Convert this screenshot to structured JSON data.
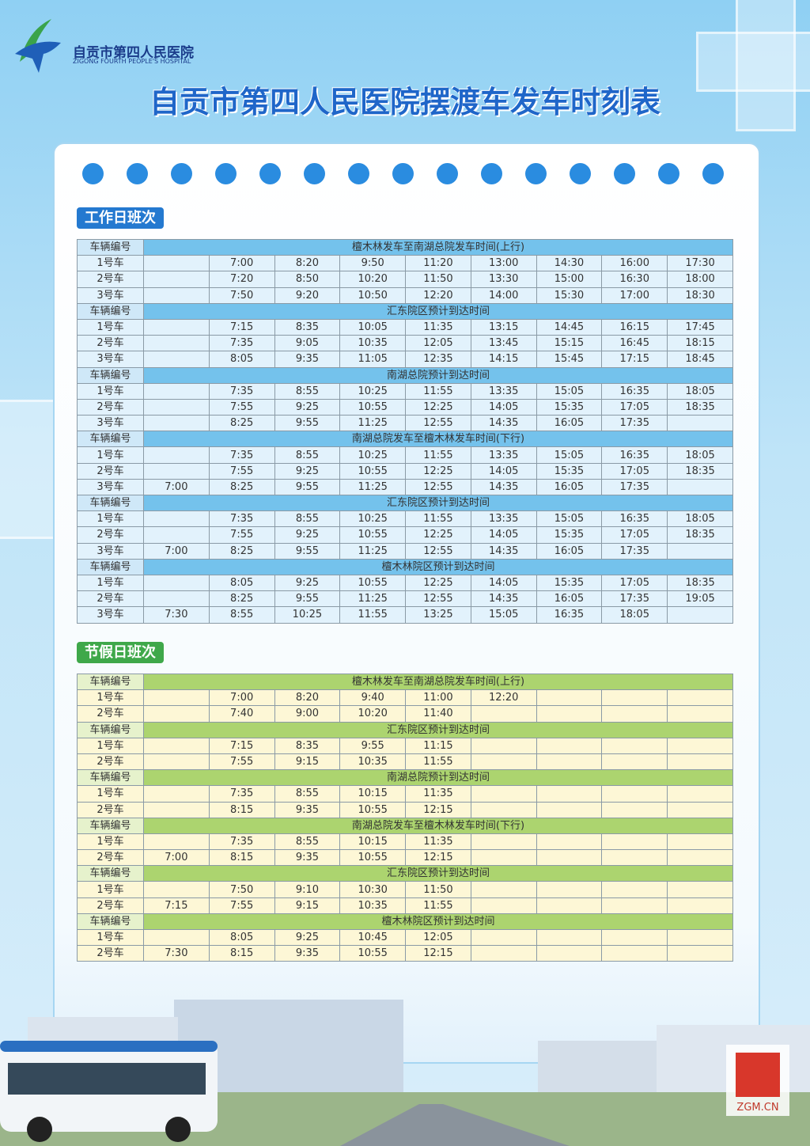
{
  "header": {
    "logo_cn": "自贡市第四人民医院",
    "logo_en": "ZIGONG FOURTH PEOPLE'S HOSPITAL",
    "title": "自贡市第四人民医院摆渡车发车时刻表"
  },
  "sections": [
    {
      "title": "工作日班次",
      "theme": "blue",
      "blocks": [
        {
          "id_label": "车辆编号",
          "caption": "檀木林发车至南湖总院发车时间(上行)",
          "rows": [
            {
              "car": "1号车",
              "times": [
                null,
                "7:00",
                "8:20",
                "9:50",
                "11:20",
                "13:00",
                "14:30",
                "16:00",
                "17:30"
              ]
            },
            {
              "car": "2号车",
              "times": [
                null,
                "7:20",
                "8:50",
                "10:20",
                "11:50",
                "13:30",
                "15:00",
                "16:30",
                "18:00"
              ]
            },
            {
              "car": "3号车",
              "times": [
                null,
                "7:50",
                "9:20",
                "10:50",
                "12:20",
                "14:00",
                "15:30",
                "17:00",
                "18:30"
              ]
            }
          ]
        },
        {
          "id_label": "车辆编号",
          "caption": "汇东院区预计到达时间",
          "rows": [
            {
              "car": "1号车",
              "times": [
                null,
                "7:15",
                "8:35",
                "10:05",
                "11:35",
                "13:15",
                "14:45",
                "16:15",
                "17:45"
              ]
            },
            {
              "car": "2号车",
              "times": [
                null,
                "7:35",
                "9:05",
                "10:35",
                "12:05",
                "13:45",
                "15:15",
                "16:45",
                "18:15"
              ]
            },
            {
              "car": "3号车",
              "times": [
                null,
                "8:05",
                "9:35",
                "11:05",
                "12:35",
                "14:15",
                "15:45",
                "17:15",
                "18:45"
              ]
            }
          ]
        },
        {
          "id_label": "车辆编号",
          "caption": "南湖总院预计到达时间",
          "rows": [
            {
              "car": "1号车",
              "times": [
                null,
                "7:35",
                "8:55",
                "10:25",
                "11:55",
                "13:35",
                "15:05",
                "16:35",
                "18:05"
              ]
            },
            {
              "car": "2号车",
              "times": [
                null,
                "7:55",
                "9:25",
                "10:55",
                "12:25",
                "14:05",
                "15:35",
                "17:05",
                "18:35"
              ]
            },
            {
              "car": "3号车",
              "times": [
                null,
                "8:25",
                "9:55",
                "11:25",
                "12:55",
                "14:35",
                "16:05",
                "17:35",
                null
              ]
            }
          ]
        },
        {
          "id_label": "车辆编号",
          "caption": "南湖总院发车至檀木林发车时间(下行)",
          "rows": [
            {
              "car": "1号车",
              "times": [
                null,
                "7:35",
                "8:55",
                "10:25",
                "11:55",
                "13:35",
                "15:05",
                "16:35",
                "18:05"
              ]
            },
            {
              "car": "2号车",
              "times": [
                null,
                "7:55",
                "9:25",
                "10:55",
                "12:25",
                "14:05",
                "15:35",
                "17:05",
                "18:35"
              ]
            },
            {
              "car": "3号车",
              "times": [
                "7:00",
                "8:25",
                "9:55",
                "11:25",
                "12:55",
                "14:35",
                "16:05",
                "17:35",
                null
              ]
            }
          ]
        },
        {
          "id_label": "车辆编号",
          "caption": "汇东院区预计到达时间",
          "rows": [
            {
              "car": "1号车",
              "times": [
                null,
                "7:35",
                "8:55",
                "10:25",
                "11:55",
                "13:35",
                "15:05",
                "16:35",
                "18:05"
              ]
            },
            {
              "car": "2号车",
              "times": [
                null,
                "7:55",
                "9:25",
                "10:55",
                "12:25",
                "14:05",
                "15:35",
                "17:05",
                "18:35"
              ]
            },
            {
              "car": "3号车",
              "times": [
                "7:00",
                "8:25",
                "9:55",
                "11:25",
                "12:55",
                "14:35",
                "16:05",
                "17:35",
                null
              ]
            }
          ]
        },
        {
          "id_label": "车辆编号",
          "caption": "檀木林院区预计到达时间",
          "rows": [
            {
              "car": "1号车",
              "times": [
                null,
                "8:05",
                "9:25",
                "10:55",
                "12:25",
                "14:05",
                "15:35",
                "17:05",
                "18:35"
              ]
            },
            {
              "car": "2号车",
              "times": [
                null,
                "8:25",
                "9:55",
                "11:25",
                "12:55",
                "14:35",
                "16:05",
                "17:35",
                "19:05"
              ]
            },
            {
              "car": "3号车",
              "times": [
                "7:30",
                "8:55",
                "10:25",
                "11:55",
                "13:25",
                "15:05",
                "16:35",
                "18:05",
                null
              ]
            }
          ]
        }
      ]
    },
    {
      "title": "节假日班次",
      "theme": "green",
      "blocks": [
        {
          "id_label": "车辆编号",
          "caption": "檀木林发车至南湖总院发车时间(上行)",
          "rows": [
            {
              "car": "1号车",
              "times": [
                null,
                "7:00",
                "8:20",
                "9:40",
                "11:00",
                "12:20",
                null,
                null,
                null
              ]
            },
            {
              "car": "2号车",
              "times": [
                null,
                "7:40",
                "9:00",
                "10:20",
                "11:40",
                null,
                null,
                null,
                null
              ]
            }
          ]
        },
        {
          "id_label": "车辆编号",
          "caption": "汇东院区预计到达时间",
          "rows": [
            {
              "car": "1号车",
              "times": [
                null,
                "7:15",
                "8:35",
                "9:55",
                "11:15",
                null,
                null,
                null,
                null
              ]
            },
            {
              "car": "2号车",
              "times": [
                null,
                "7:55",
                "9:15",
                "10:35",
                "11:55",
                null,
                null,
                null,
                null
              ]
            }
          ]
        },
        {
          "id_label": "车辆编号",
          "caption": "南湖总院预计到达时间",
          "rows": [
            {
              "car": "1号车",
              "times": [
                null,
                "7:35",
                "8:55",
                "10:15",
                "11:35",
                null,
                null,
                null,
                null
              ]
            },
            {
              "car": "2号车",
              "times": [
                null,
                "8:15",
                "9:35",
                "10:55",
                "12:15",
                null,
                null,
                null,
                null
              ]
            }
          ]
        },
        {
          "id_label": "车辆编号",
          "caption": "南湖总院发车至檀木林发车时间(下行)",
          "rows": [
            {
              "car": "1号车",
              "times": [
                null,
                "7:35",
                "8:55",
                "10:15",
                "11:35",
                null,
                null,
                null,
                null
              ]
            },
            {
              "car": "2号车",
              "times": [
                "7:00",
                "8:15",
                "9:35",
                "10:55",
                "12:15",
                null,
                null,
                null,
                null
              ]
            }
          ]
        },
        {
          "id_label": "车辆编号",
          "caption": "汇东院区预计到达时间",
          "rows": [
            {
              "car": "1号车",
              "times": [
                null,
                "7:50",
                "9:10",
                "10:30",
                "11:50",
                null,
                null,
                null,
                null
              ]
            },
            {
              "car": "2号车",
              "times": [
                "7:15",
                "7:55",
                "9:15",
                "10:35",
                "11:55",
                null,
                null,
                null,
                null
              ]
            }
          ]
        },
        {
          "id_label": "车辆编号",
          "caption": "檀木林院区预计到达时间",
          "rows": [
            {
              "car": "1号车",
              "times": [
                null,
                "8:05",
                "9:25",
                "10:45",
                "12:05",
                null,
                null,
                null,
                null
              ]
            },
            {
              "car": "2号车",
              "times": [
                "7:30",
                "8:15",
                "9:35",
                "10:55",
                "12:15",
                null,
                null,
                null,
                null
              ]
            }
          ]
        }
      ]
    }
  ],
  "watermark": "ZGM.CN"
}
